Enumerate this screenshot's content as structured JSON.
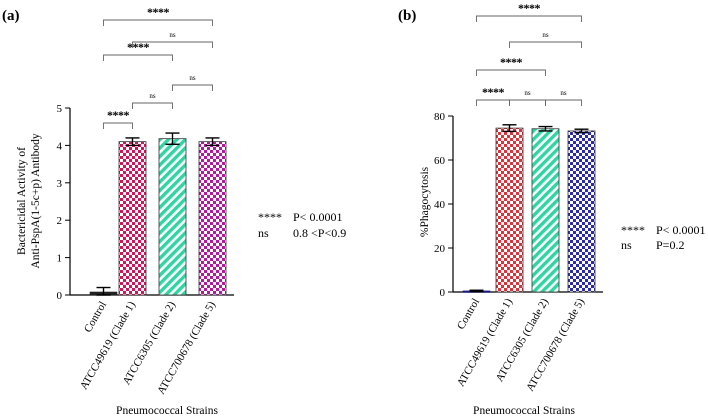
{
  "chart_data": [
    {
      "type": "bar",
      "panel_label": "(a)",
      "ylabel_lines": [
        "Bactericidal Activity of",
        "Anti-PspA(1-5c+p) Antibody"
      ],
      "xlabel": "Pneumococcal Strains",
      "categories": [
        "Control",
        "ATCC49619 (Clade 1)",
        "ATCC6305 (Clade 2)",
        "ATCC700678 (Clade 5)"
      ],
      "values": [
        0.08,
        4.1,
        4.18,
        4.1
      ],
      "errors": [
        0.12,
        0.1,
        0.15,
        0.1
      ],
      "ylim": [
        0,
        5
      ],
      "yticks": [
        0,
        1,
        2,
        3,
        4,
        5
      ],
      "bar_colors": [
        "#222222",
        "#d4145a",
        "#2fd6a4",
        "#b5179e"
      ],
      "bar_patterns": [
        "solid",
        "checker",
        "diagonal",
        "checker"
      ],
      "comparisons": [
        {
          "from": 0,
          "to": 1,
          "label": "****"
        },
        {
          "from": 1,
          "to": 2,
          "label": "ns"
        },
        {
          "from": 2,
          "to": 3,
          "label": "ns"
        },
        {
          "from": 0,
          "to": 2,
          "label": "****"
        },
        {
          "from": 1,
          "to": 3,
          "label": "ns"
        },
        {
          "from": 0,
          "to": 3,
          "label": "****"
        }
      ],
      "legend": [
        {
          "symbol": "****",
          "text": "P< 0.0001"
        },
        {
          "symbol": "ns",
          "text": "0.8 <P<0.9"
        }
      ]
    },
    {
      "type": "bar",
      "panel_label": "(b)",
      "ylabel_lines": [
        "%Phagocytosis"
      ],
      "xlabel": "Pneumococcal Strains",
      "categories": [
        "Control",
        "ATCC49619 (Clade 1)",
        "ATCC6305 (Clade 2)",
        "ATCC700678 (Clade 5)"
      ],
      "values": [
        0.5,
        74.5,
        74.2,
        73.2
      ],
      "errors": [
        0.3,
        1.5,
        1.0,
        0.8
      ],
      "ylim": [
        0,
        80
      ],
      "yticks": [
        0,
        20,
        40,
        60,
        80
      ],
      "bar_colors": [
        "#1a1a8c",
        "#e0303a",
        "#2fd6a4",
        "#2a2ab5"
      ],
      "bar_patterns": [
        "solid",
        "checker",
        "diagonal",
        "checker"
      ],
      "comparisons": [
        {
          "from": 0,
          "to": 1,
          "label": "****"
        },
        {
          "from": 1,
          "to": 2,
          "label": "ns"
        },
        {
          "from": 2,
          "to": 3,
          "label": "ns"
        },
        {
          "from": 0,
          "to": 2,
          "label": "****"
        },
        {
          "from": 1,
          "to": 3,
          "label": "ns"
        },
        {
          "from": 0,
          "to": 3,
          "label": "****"
        }
      ],
      "legend": [
        {
          "symbol": "****",
          "text": "P< 0.0001"
        },
        {
          "symbol": "ns",
          "text": "P=0.2"
        }
      ]
    }
  ]
}
